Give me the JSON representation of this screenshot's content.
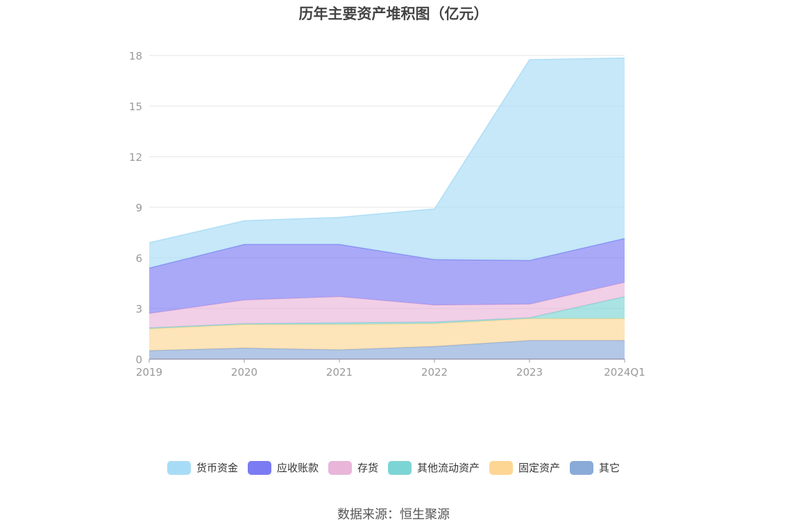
{
  "chart_data": {
    "type": "area",
    "title": "历年主要资产堆积图（亿元）",
    "categories": [
      "2019",
      "2020",
      "2021",
      "2022",
      "2023",
      "2024Q1"
    ],
    "stacked": true,
    "ylim": [
      0,
      18
    ],
    "yticks": [
      0,
      3,
      6,
      9,
      12,
      15,
      18
    ],
    "grid": true,
    "legend_position": "bottom",
    "series": [
      {
        "name": "其它",
        "color": "#8aaad8",
        "values": [
          0.5,
          0.65,
          0.55,
          0.75,
          1.1,
          1.1
        ]
      },
      {
        "name": "固定资产",
        "color": "#fdd694",
        "values": [
          1.3,
          1.4,
          1.5,
          1.35,
          1.3,
          1.3
        ]
      },
      {
        "name": "其他流动资产",
        "color": "#7dd4d4",
        "values": [
          0.05,
          0.05,
          0.1,
          0.1,
          0.05,
          1.3
        ]
      },
      {
        "name": "存货",
        "color": "#e9b6d9",
        "values": [
          0.85,
          1.4,
          1.55,
          1.0,
          0.8,
          0.85
        ]
      },
      {
        "name": "应收账款",
        "color": "#7b7bf2",
        "values": [
          2.7,
          3.3,
          3.1,
          2.7,
          2.6,
          2.6
        ]
      },
      {
        "name": "货币资金",
        "color": "#a8dcf6",
        "values": [
          1.5,
          1.4,
          1.6,
          3.0,
          11.9,
          10.7
        ]
      }
    ]
  },
  "legend_order": [
    "货币资金",
    "应收账款",
    "存货",
    "其他流动资产",
    "固定资产",
    "其它"
  ],
  "source": "数据来源：恒生聚源"
}
